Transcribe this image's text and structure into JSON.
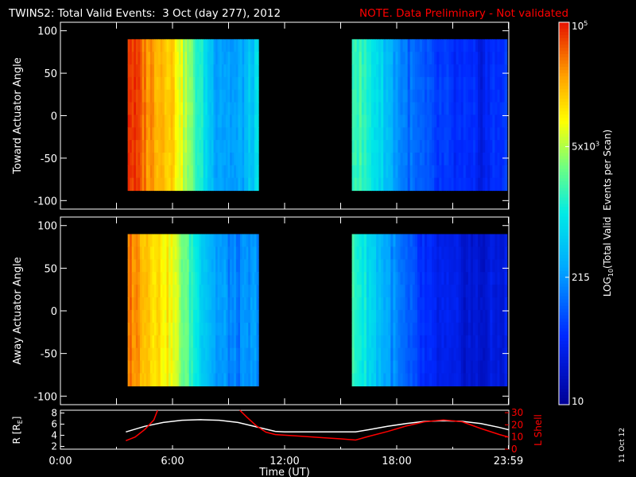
{
  "title": "TWINS2: Total Valid Events:  3 Oct (day 277), 2012",
  "note": "NOTE. Data Preliminary - Not validated",
  "colors": {
    "background": "#000000",
    "text": "#ffffff",
    "note": "#ff0000",
    "lshell": "#ff0000",
    "radius": "#ffffff"
  },
  "footer": {
    "date_stamp": "11 Oct 12"
  },
  "chart_data": [
    {
      "type": "heatmap",
      "panel": "toward",
      "ylabel": "Toward Actuator Angle",
      "ylim": [
        -110,
        110
      ],
      "yticks": [
        -100,
        -50,
        0,
        50,
        100
      ],
      "xlim": [
        0,
        24
      ],
      "data_blocks": [
        {
          "x_start": 3.6,
          "x_end": 10.6,
          "y_start": -88,
          "y_end": 90,
          "trend": [
            1.0,
            0.88,
            0.82,
            0.6,
            0.38,
            0.34,
            0.46
          ]
        },
        {
          "x_start": 15.6,
          "x_end": 23.9,
          "y_start": -88,
          "y_end": 90,
          "trend": [
            0.6,
            0.48,
            0.3,
            0.22,
            0.18,
            0.15,
            0.22
          ]
        }
      ]
    },
    {
      "type": "heatmap",
      "panel": "away",
      "ylabel": "Away Actuator Angle",
      "ylim": [
        -110,
        110
      ],
      "yticks": [
        -100,
        -50,
        0,
        50,
        100
      ],
      "xlim": [
        0,
        24
      ],
      "data_blocks": [
        {
          "x_start": 3.6,
          "x_end": 10.6,
          "y_start": -88,
          "y_end": 90,
          "trend": [
            0.92,
            0.82,
            0.74,
            0.54,
            0.36,
            0.3,
            0.34
          ]
        },
        {
          "x_start": 15.6,
          "x_end": 23.9,
          "y_start": -88,
          "y_end": 90,
          "trend": [
            0.58,
            0.42,
            0.26,
            0.16,
            0.12,
            0.1,
            0.14
          ]
        }
      ]
    },
    {
      "type": "line",
      "panel": "orbit",
      "ylabel": "R [R_E]",
      "ylabel_left_main": "R [R",
      "ylabel_left_sub": "E",
      "ylabel_left_close": "]",
      "ylabel_right": "L Shell",
      "xlabel": "Time (UT)",
      "xlim": [
        0,
        24
      ],
      "xticks": [
        0,
        6,
        12,
        18,
        23.98
      ],
      "xtick_labels": [
        "0:00",
        "6:00",
        "12:00",
        "18:00",
        "23:59"
      ],
      "ylim_left": [
        1.5,
        8.5
      ],
      "yticks_left": [
        2,
        4,
        6,
        8
      ],
      "ylim_right": [
        0,
        32
      ],
      "yticks_right": [
        0,
        10,
        20,
        30
      ],
      "series": [
        {
          "axis": "left",
          "color": "#ffffff",
          "x": [
            3.5,
            4.5,
            5.5,
            6.5,
            7.5,
            8.5,
            9.5,
            10.5,
            11.5,
            12,
            13,
            14,
            15,
            15.8,
            16.5,
            17.5,
            18.5,
            19.5,
            20.5,
            21.5,
            22.5,
            23.5,
            23.98
          ],
          "y": [
            4.6,
            5.6,
            6.3,
            6.7,
            6.8,
            6.7,
            6.3,
            5.5,
            4.7,
            4.6,
            4.6,
            4.6,
            4.6,
            4.6,
            5.0,
            5.6,
            6.1,
            6.5,
            6.6,
            6.5,
            6.1,
            5.4,
            5.0
          ]
        },
        {
          "axis": "right",
          "color": "#ff0000",
          "x": [
            3.5,
            4.0,
            4.5,
            5.0,
            5.2
          ],
          "y": [
            7,
            10,
            16,
            24,
            32
          ]
        },
        {
          "axis": "right",
          "color": "#ff0000",
          "x": [
            9.6,
            10.0,
            10.5,
            11.0,
            11.5,
            12,
            13,
            14,
            15,
            15.8,
            16.5,
            17.5,
            18.5,
            19.5,
            20.5,
            21.5,
            22.5,
            23.5,
            23.98
          ],
          "y": [
            32,
            26,
            19,
            14,
            12,
            11.5,
            10.5,
            9.5,
            8.5,
            7.5,
            10.5,
            14.5,
            19,
            22.5,
            24,
            22.5,
            17,
            12,
            10
          ]
        }
      ]
    },
    {
      "type": "heatmap",
      "panel": "colorbar",
      "scale": "log",
      "ylabel": "LOG",
      "ylabel_sub": "10",
      "ylabel_rest": "(Total Valid  Events per Scan)",
      "range": [
        10,
        100000
      ],
      "ticks": [
        {
          "value": 10,
          "main": "10",
          "sup": ""
        },
        {
          "value": 215,
          "main": "215",
          "sup": ""
        },
        {
          "value": 5000,
          "main": "5x10",
          "sup": "3"
        },
        {
          "value": 100000,
          "main": "10",
          "sup": "5"
        }
      ]
    }
  ]
}
